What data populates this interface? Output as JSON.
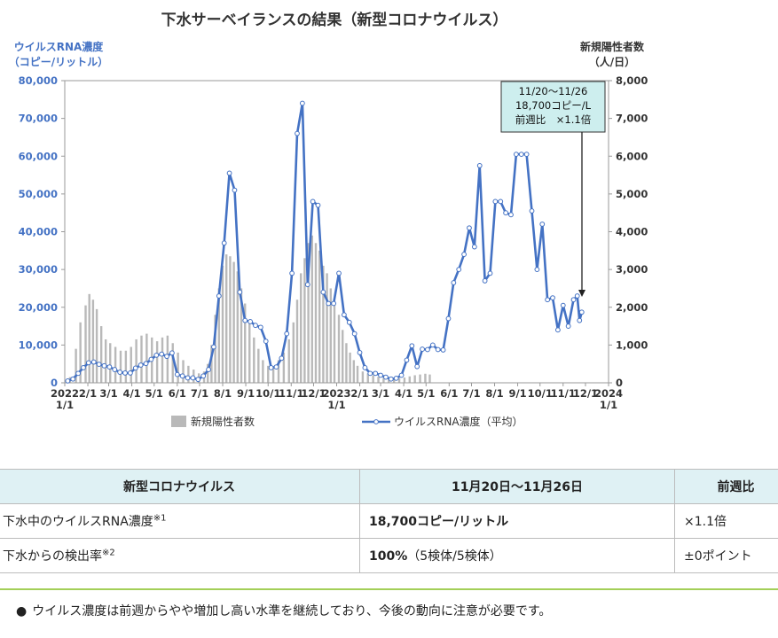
{
  "chart_data": {
    "type": "bar+line",
    "title": "下水サーベイランスの結果（新型コロナウイルス）",
    "y_left_label_1": "ウイルスRNA濃度",
    "y_left_label_2": "（コピー/リットル）",
    "y_right_label_1": "新規陽性者数",
    "y_right_label_2": "（人/日）",
    "y_left_range": [
      0,
      80000
    ],
    "y_right_range": [
      0,
      8000
    ],
    "y_left_ticks": [
      "0",
      "10,000",
      "20,000",
      "30,000",
      "40,000",
      "50,000",
      "60,000",
      "70,000",
      "80,000"
    ],
    "y_right_ticks": [
      "0",
      "1,000",
      "2,000",
      "3,000",
      "4,000",
      "5,000",
      "6,000",
      "7,000",
      "8,000"
    ],
    "x_range": [
      "2022-01-01",
      "2024-01-01"
    ],
    "x_ticks": [
      {
        "label": "2022",
        "sub": "1/1",
        "date": "2022-01-01"
      },
      {
        "label": "2/1",
        "date": "2022-02-01"
      },
      {
        "label": "3/1",
        "date": "2022-03-01"
      },
      {
        "label": "4/1",
        "date": "2022-04-01"
      },
      {
        "label": "5/1",
        "date": "2022-05-01"
      },
      {
        "label": "6/1",
        "date": "2022-06-01"
      },
      {
        "label": "7/1",
        "date": "2022-07-01"
      },
      {
        "label": "8/1",
        "date": "2022-08-01"
      },
      {
        "label": "9/1",
        "date": "2022-09-01"
      },
      {
        "label": "10/1",
        "date": "2022-10-01"
      },
      {
        "label": "11/1",
        "date": "2022-11-01"
      },
      {
        "label": "12/1",
        "date": "2022-12-01"
      },
      {
        "label": "2023",
        "sub": "1/1",
        "date": "2023-01-01"
      },
      {
        "label": "2/1",
        "date": "2023-02-01"
      },
      {
        "label": "3/1",
        "date": "2023-03-01"
      },
      {
        "label": "4/1",
        "date": "2023-04-01"
      },
      {
        "label": "5/1",
        "date": "2023-05-01"
      },
      {
        "label": "6/1",
        "date": "2023-06-01"
      },
      {
        "label": "7/1",
        "date": "2023-07-01"
      },
      {
        "label": "8/1",
        "date": "2023-08-01"
      },
      {
        "label": "9/1",
        "date": "2023-09-01"
      },
      {
        "label": "10/1",
        "date": "2023-10-01"
      },
      {
        "label": "11/1",
        "date": "2023-11-01"
      },
      {
        "label": "12/1",
        "date": "2023-12-01"
      },
      {
        "label": "2024",
        "sub": "1/1",
        "date": "2024-01-01"
      }
    ],
    "series": [
      {
        "name": "新規陽性者数",
        "type": "bar",
        "axis": "right",
        "color": "#b9b9b9",
        "points": [
          [
            "2022-01-08",
            150
          ],
          [
            "2022-01-16",
            900
          ],
          [
            "2022-01-22",
            1600
          ],
          [
            "2022-01-29",
            2050
          ],
          [
            "2022-02-03",
            2350
          ],
          [
            "2022-02-08",
            2200
          ],
          [
            "2022-02-13",
            1950
          ],
          [
            "2022-02-19",
            1500
          ],
          [
            "2022-02-25",
            1150
          ],
          [
            "2022-03-03",
            1050
          ],
          [
            "2022-03-10",
            950
          ],
          [
            "2022-03-17",
            850
          ],
          [
            "2022-03-24",
            850
          ],
          [
            "2022-03-31",
            950
          ],
          [
            "2022-04-07",
            1150
          ],
          [
            "2022-04-14",
            1250
          ],
          [
            "2022-04-21",
            1300
          ],
          [
            "2022-04-28",
            1200
          ],
          [
            "2022-05-05",
            1100
          ],
          [
            "2022-05-12",
            1200
          ],
          [
            "2022-05-19",
            1250
          ],
          [
            "2022-05-26",
            1050
          ],
          [
            "2022-06-02",
            800
          ],
          [
            "2022-06-09",
            600
          ],
          [
            "2022-06-16",
            450
          ],
          [
            "2022-06-23",
            350
          ],
          [
            "2022-06-30",
            250
          ],
          [
            "2022-07-07",
            300
          ],
          [
            "2022-07-12",
            500
          ],
          [
            "2022-07-17",
            1000
          ],
          [
            "2022-07-22",
            1800
          ],
          [
            "2022-07-27",
            2500
          ],
          [
            "2022-08-01",
            3100
          ],
          [
            "2022-08-06",
            3400
          ],
          [
            "2022-08-11",
            3350
          ],
          [
            "2022-08-16",
            3200
          ],
          [
            "2022-08-21",
            2950
          ],
          [
            "2022-08-26",
            2500
          ],
          [
            "2022-08-31",
            2100
          ],
          [
            "2022-09-06",
            1650
          ],
          [
            "2022-09-12",
            1200
          ],
          [
            "2022-09-18",
            900
          ],
          [
            "2022-09-24",
            600
          ],
          [
            "2022-10-01",
            450
          ],
          [
            "2022-10-08",
            400
          ],
          [
            "2022-10-15",
            600
          ],
          [
            "2022-10-22",
            800
          ],
          [
            "2022-10-29",
            1150
          ],
          [
            "2022-11-04",
            1600
          ],
          [
            "2022-11-09",
            2200
          ],
          [
            "2022-11-14",
            2900
          ],
          [
            "2022-11-19",
            3300
          ],
          [
            "2022-11-24",
            3700
          ],
          [
            "2022-11-29",
            3900
          ],
          [
            "2022-12-04",
            3700
          ],
          [
            "2022-12-09",
            3500
          ],
          [
            "2022-12-14",
            3100
          ],
          [
            "2022-12-19",
            2900
          ],
          [
            "2022-12-24",
            2500
          ],
          [
            "2022-12-29",
            2100
          ],
          [
            "2023-01-04",
            1800
          ],
          [
            "2023-01-09",
            1400
          ],
          [
            "2023-01-14",
            1050
          ],
          [
            "2023-01-19",
            800
          ],
          [
            "2023-01-24",
            600
          ],
          [
            "2023-01-29",
            450
          ],
          [
            "2023-02-05",
            300
          ],
          [
            "2023-02-12",
            250
          ],
          [
            "2023-02-19",
            200
          ],
          [
            "2023-02-26",
            160
          ],
          [
            "2023-03-05",
            130
          ],
          [
            "2023-03-12",
            110
          ],
          [
            "2023-03-19",
            110
          ],
          [
            "2023-03-26",
            120
          ],
          [
            "2023-04-02",
            140
          ],
          [
            "2023-04-09",
            170
          ],
          [
            "2023-04-16",
            200
          ],
          [
            "2023-04-23",
            220
          ],
          [
            "2023-04-30",
            240
          ],
          [
            "2023-05-06",
            220
          ]
        ]
      },
      {
        "name": "ウイルスRNA濃度（平均）",
        "type": "line",
        "axis": "left",
        "color": "#4472c4",
        "points": [
          [
            "2022-01-05",
            500
          ],
          [
            "2022-01-12",
            1000
          ],
          [
            "2022-01-19",
            2500
          ],
          [
            "2022-01-26",
            4000
          ],
          [
            "2022-02-02",
            5300
          ],
          [
            "2022-02-09",
            5500
          ],
          [
            "2022-02-16",
            4900
          ],
          [
            "2022-02-23",
            4500
          ],
          [
            "2022-03-02",
            4200
          ],
          [
            "2022-03-09",
            3500
          ],
          [
            "2022-03-16",
            2800
          ],
          [
            "2022-03-23",
            2600
          ],
          [
            "2022-03-30",
            2600
          ],
          [
            "2022-04-06",
            3900
          ],
          [
            "2022-04-13",
            4700
          ],
          [
            "2022-04-20",
            5100
          ],
          [
            "2022-04-27",
            6200
          ],
          [
            "2022-05-04",
            7300
          ],
          [
            "2022-05-11",
            7600
          ],
          [
            "2022-05-18",
            7000
          ],
          [
            "2022-05-25",
            7900
          ],
          [
            "2022-06-01",
            2200
          ],
          [
            "2022-06-08",
            1800
          ],
          [
            "2022-06-15",
            1300
          ],
          [
            "2022-06-22",
            1300
          ],
          [
            "2022-06-29",
            900
          ],
          [
            "2022-07-06",
            1800
          ],
          [
            "2022-07-13",
            3500
          ],
          [
            "2022-07-20",
            9500
          ],
          [
            "2022-07-27",
            23000
          ],
          [
            "2022-08-03",
            37000
          ],
          [
            "2022-08-10",
            55500
          ],
          [
            "2022-08-17",
            51000
          ],
          [
            "2022-08-24",
            24000
          ],
          [
            "2022-08-31",
            16500
          ],
          [
            "2022-09-07",
            16200
          ],
          [
            "2022-09-14",
            15200
          ],
          [
            "2022-09-21",
            14700
          ],
          [
            "2022-09-28",
            11000
          ],
          [
            "2022-10-05",
            4000
          ],
          [
            "2022-10-12",
            4200
          ],
          [
            "2022-10-19",
            6500
          ],
          [
            "2022-10-26",
            13000
          ],
          [
            "2022-11-02",
            29000
          ],
          [
            "2022-11-09",
            66000
          ],
          [
            "2022-11-16",
            74000
          ],
          [
            "2022-11-23",
            26000
          ],
          [
            "2022-11-30",
            48000
          ],
          [
            "2022-12-07",
            47000
          ],
          [
            "2022-12-14",
            24000
          ],
          [
            "2022-12-21",
            21000
          ],
          [
            "2022-12-28",
            21000
          ],
          [
            "2023-01-04",
            29000
          ],
          [
            "2023-01-11",
            18000
          ],
          [
            "2023-01-18",
            16000
          ],
          [
            "2023-01-25",
            13000
          ],
          [
            "2023-02-01",
            8000
          ],
          [
            "2023-02-08",
            4000
          ],
          [
            "2023-02-15",
            2500
          ],
          [
            "2023-02-22",
            2500
          ],
          [
            "2023-03-01",
            2000
          ],
          [
            "2023-03-08",
            1500
          ],
          [
            "2023-03-15",
            1000
          ],
          [
            "2023-03-22",
            1200
          ],
          [
            "2023-03-29",
            2000
          ],
          [
            "2023-04-05",
            6000
          ],
          [
            "2023-04-12",
            9800
          ],
          [
            "2023-04-19",
            4300
          ],
          [
            "2023-04-26",
            8900
          ],
          [
            "2023-05-03",
            8800
          ],
          [
            "2023-05-10",
            10000
          ],
          [
            "2023-05-17",
            8800
          ],
          [
            "2023-05-24",
            8700
          ],
          [
            "2023-05-31",
            17000
          ],
          [
            "2023-06-07",
            26500
          ],
          [
            "2023-06-14",
            30000
          ],
          [
            "2023-06-21",
            34000
          ],
          [
            "2023-06-28",
            41000
          ],
          [
            "2023-07-05",
            36000
          ],
          [
            "2023-07-12",
            57500
          ],
          [
            "2023-07-19",
            27000
          ],
          [
            "2023-07-26",
            29000
          ],
          [
            "2023-08-02",
            48000
          ],
          [
            "2023-08-09",
            48000
          ],
          [
            "2023-08-16",
            45000
          ],
          [
            "2023-08-23",
            44500
          ],
          [
            "2023-08-30",
            60500
          ],
          [
            "2023-09-06",
            60500
          ],
          [
            "2023-09-13",
            60500
          ],
          [
            "2023-09-20",
            45500
          ],
          [
            "2023-09-27",
            30000
          ],
          [
            "2023-10-04",
            42000
          ],
          [
            "2023-10-11",
            22000
          ],
          [
            "2023-10-18",
            22500
          ],
          [
            "2023-10-25",
            14000
          ],
          [
            "2023-11-01",
            20500
          ],
          [
            "2023-11-08",
            15000
          ],
          [
            "2023-11-15",
            22000
          ],
          [
            "2023-11-20",
            23000
          ],
          [
            "2023-11-23",
            16500
          ],
          [
            "2023-11-26",
            18700
          ]
        ]
      }
    ],
    "legend": [
      {
        "label": "新規陽性者数",
        "kind": "bar"
      },
      {
        "label": "ウイルスRNA濃度（平均）",
        "kind": "line"
      }
    ],
    "legend_position": "bottom",
    "callout": {
      "lines": [
        "11/20〜11/26",
        "18,700コピー/L",
        "前週比　×1.1倍"
      ],
      "target_date": "2023-11-26",
      "target_value": 18700
    },
    "grid": false
  },
  "table": {
    "headers": [
      "新型コロナウイルス",
      "11月20日〜11月26日",
      "前週比"
    ],
    "rows": [
      {
        "label": "下水中のウイルスRNA濃度",
        "sup": "※1",
        "value": "18,700コピー/リットル",
        "value_sub": "",
        "ratio": "×1.1倍"
      },
      {
        "label": "下水からの検出率",
        "sup": "※2",
        "value": "100%",
        "value_sub": "（5検体/5検体）",
        "ratio": "±0ポイント"
      }
    ]
  },
  "note": {
    "bullet": "●",
    "text": "ウイルス濃度は前週からやや増加し高い水準を継続しており、今後の動向に注意が必要です。"
  },
  "colors": {
    "line": "#4472c4",
    "bar": "#b9b9b9",
    "axis_left_text": "#4472c4",
    "callout_bg": "#cdeeee",
    "table_header_bg": "#dff1f4",
    "divider": "#a3cf58"
  }
}
